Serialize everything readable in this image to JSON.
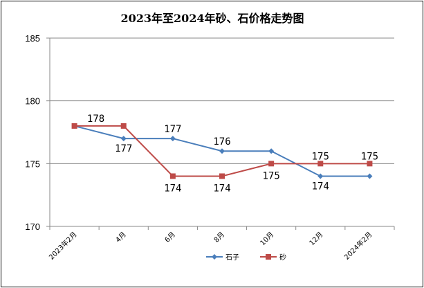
{
  "chart_data": {
    "type": "line",
    "title": "2023年至2024年砂、石价格走势图",
    "categories": [
      "2023年2月",
      "4月",
      "6月",
      "8月",
      "10月",
      "12月",
      "2024年2月"
    ],
    "ylim": [
      170,
      185
    ],
    "yticks": [
      170,
      175,
      180,
      185
    ],
    "grid": true,
    "legend_position": "bottom",
    "series": [
      {
        "name": "石子",
        "color": "#4a7ebb",
        "marker": "diamond",
        "values": [
          178,
          177,
          177,
          176,
          176,
          174,
          174
        ],
        "labels": [
          "",
          "177",
          "177",
          "176",
          "",
          "174",
          ""
        ]
      },
      {
        "name": "砂",
        "color": "#be4b48",
        "marker": "square",
        "values": [
          178,
          178,
          174,
          174,
          175,
          175,
          175
        ],
        "labels": [
          "178",
          "",
          "174",
          "174",
          "175",
          "175",
          "175"
        ]
      }
    ]
  }
}
